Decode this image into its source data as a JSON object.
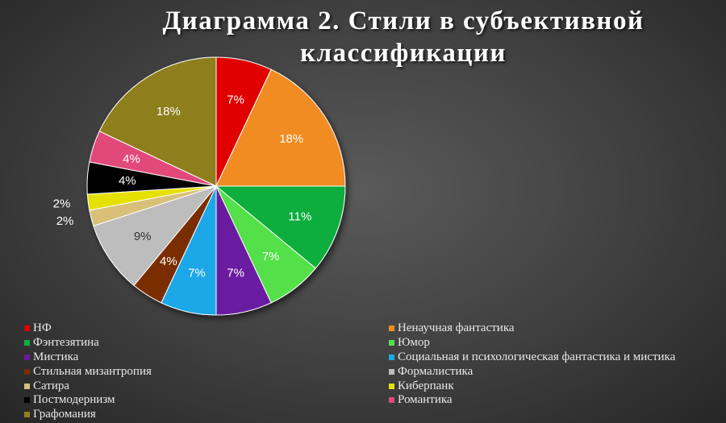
{
  "chart_data": {
    "type": "pie",
    "title": "Диаграмма 2. Стили в субъективной классификации",
    "legend_position": "bottom",
    "slices": [
      {
        "name": "НФ",
        "value": 7,
        "label": "7%",
        "color": "#e00000"
      },
      {
        "name": "Ненаучная фантастика",
        "value": 18,
        "label": "18%",
        "color": "#f08c20"
      },
      {
        "name": "Фэнтезятина",
        "value": 11,
        "label": "11%",
        "color": "#0cae3c"
      },
      {
        "name": "Юмор",
        "value": 7,
        "label": "7%",
        "color": "#52e04a"
      },
      {
        "name": "Мистика",
        "value": 7,
        "label": "7%",
        "color": "#6a1aa0"
      },
      {
        "name": "Социальная и психологическая фантастика и мистика",
        "value": 7,
        "label": "7%",
        "color": "#1aa8e8"
      },
      {
        "name": "Стильная мизантропия",
        "value": 4,
        "label": "4%",
        "color": "#7a2e06"
      },
      {
        "name": "Формалистика",
        "value": 9,
        "label": "9%",
        "color": "#bdbdbd"
      },
      {
        "name": "Сатира",
        "value": 2,
        "label": "2%",
        "color": "#d8c07a"
      },
      {
        "name": "Киберпанк",
        "value": 2,
        "label": "2%",
        "color": "#e6e000"
      },
      {
        "name": "Постмодернизм",
        "value": 4,
        "label": "4%",
        "color": "#000000"
      },
      {
        "name": "Романтика",
        "value": 4,
        "label": "4%",
        "color": "#e0487a"
      },
      {
        "name": "Графомания",
        "value": 18,
        "label": "18%",
        "color": "#8e7e1e"
      }
    ]
  }
}
